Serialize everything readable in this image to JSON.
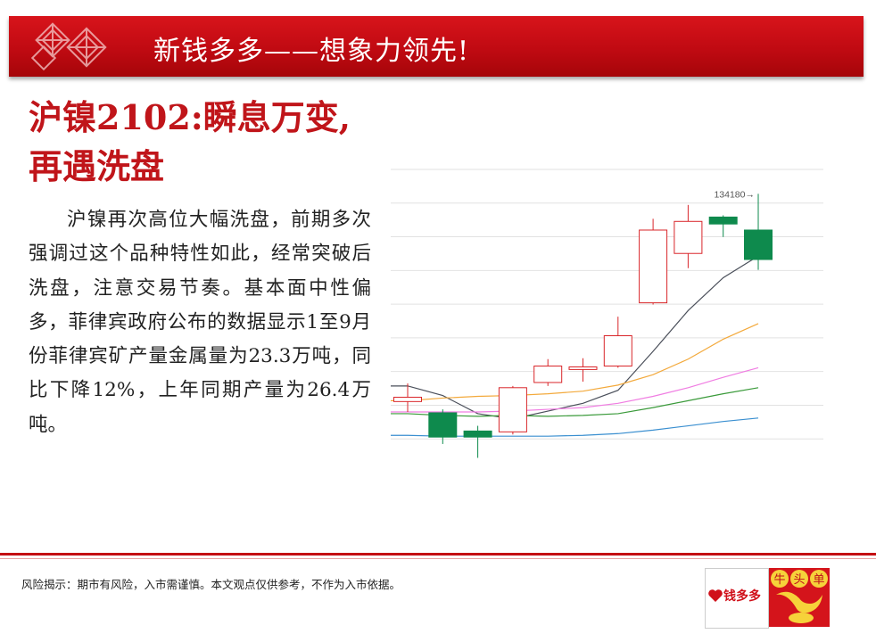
{
  "banner": {
    "title": "新钱多多——想象力领先!"
  },
  "headline": {
    "line1": "沪镍2102:瞬息万变,",
    "line2": "再遇洗盘"
  },
  "body_text": "沪镍再次高位大幅洗盘，前期多次强调过这个品种特性如此，经常突破后洗盘，注意交易节奏。基本面中性偏多，菲律宾政府公布的数据显示1至9月份菲律宾矿产量金属量为23.3万吨，同比下降12%，上年同期产量为26.4万吨。",
  "footer": {
    "disclaimer": "风险揭示：期市有风险，入市需谨慎。本文观点仅供参考，不作为入市依据。",
    "logo_text": "钱多多",
    "badge_chars": [
      "牛",
      "头",
      "单"
    ]
  },
  "colors": {
    "brand_red": "#c40d12",
    "up": "#d9262a",
    "down": "#0e8a4d"
  },
  "chart_data": {
    "type": "candlestick",
    "annotation": "134180→",
    "ylim": [
      102000,
      137000
    ],
    "grid": true,
    "candles": [
      {
        "open": 110200,
        "close": 110700,
        "high": 112300,
        "low": 109000
      },
      {
        "open": 108900,
        "close": 106100,
        "high": 109300,
        "low": 105300
      },
      {
        "open": 106800,
        "close": 106100,
        "high": 107400,
        "low": 103700
      },
      {
        "open": 106700,
        "close": 111800,
        "high": 112000,
        "low": 106400
      },
      {
        "open": 112400,
        "close": 114300,
        "high": 115100,
        "low": 112000
      },
      {
        "open": 113900,
        "close": 114200,
        "high": 115200,
        "low": 112500
      },
      {
        "open": 114300,
        "close": 117800,
        "high": 120000,
        "low": 114100
      },
      {
        "open": 121600,
        "close": 130000,
        "high": 131300,
        "low": 121400
      },
      {
        "open": 127300,
        "close": 131000,
        "high": 132900,
        "low": 125600
      },
      {
        "open": 131500,
        "close": 130700,
        "high": 131700,
        "low": 129200
      },
      {
        "open": 130000,
        "close": 126600,
        "high": 134180,
        "low": 125400
      }
    ],
    "series": [
      {
        "color": "#4a4f5a",
        "values": [
          112000,
          110900,
          108800,
          108200,
          109100,
          110000,
          111500,
          116000,
          120700,
          124500,
          127000
        ]
      },
      {
        "color": "#f3a93b",
        "values": [
          110300,
          110600,
          110800,
          110900,
          111100,
          111400,
          112100,
          113300,
          115100,
          117400,
          119200
        ]
      },
      {
        "color": "#f07de2",
        "values": [
          109000,
          109000,
          109000,
          109100,
          109300,
          109500,
          110000,
          110800,
          111800,
          113000,
          114100
        ]
      },
      {
        "color": "#3a9a3a",
        "values": [
          108800,
          108600,
          108500,
          108600,
          108500,
          108600,
          108800,
          109500,
          110300,
          111100,
          111800
        ]
      },
      {
        "color": "#3a8fd0",
        "values": [
          106300,
          106200,
          106200,
          106200,
          106200,
          106300,
          106500,
          106900,
          107400,
          107900,
          108300
        ]
      }
    ]
  }
}
